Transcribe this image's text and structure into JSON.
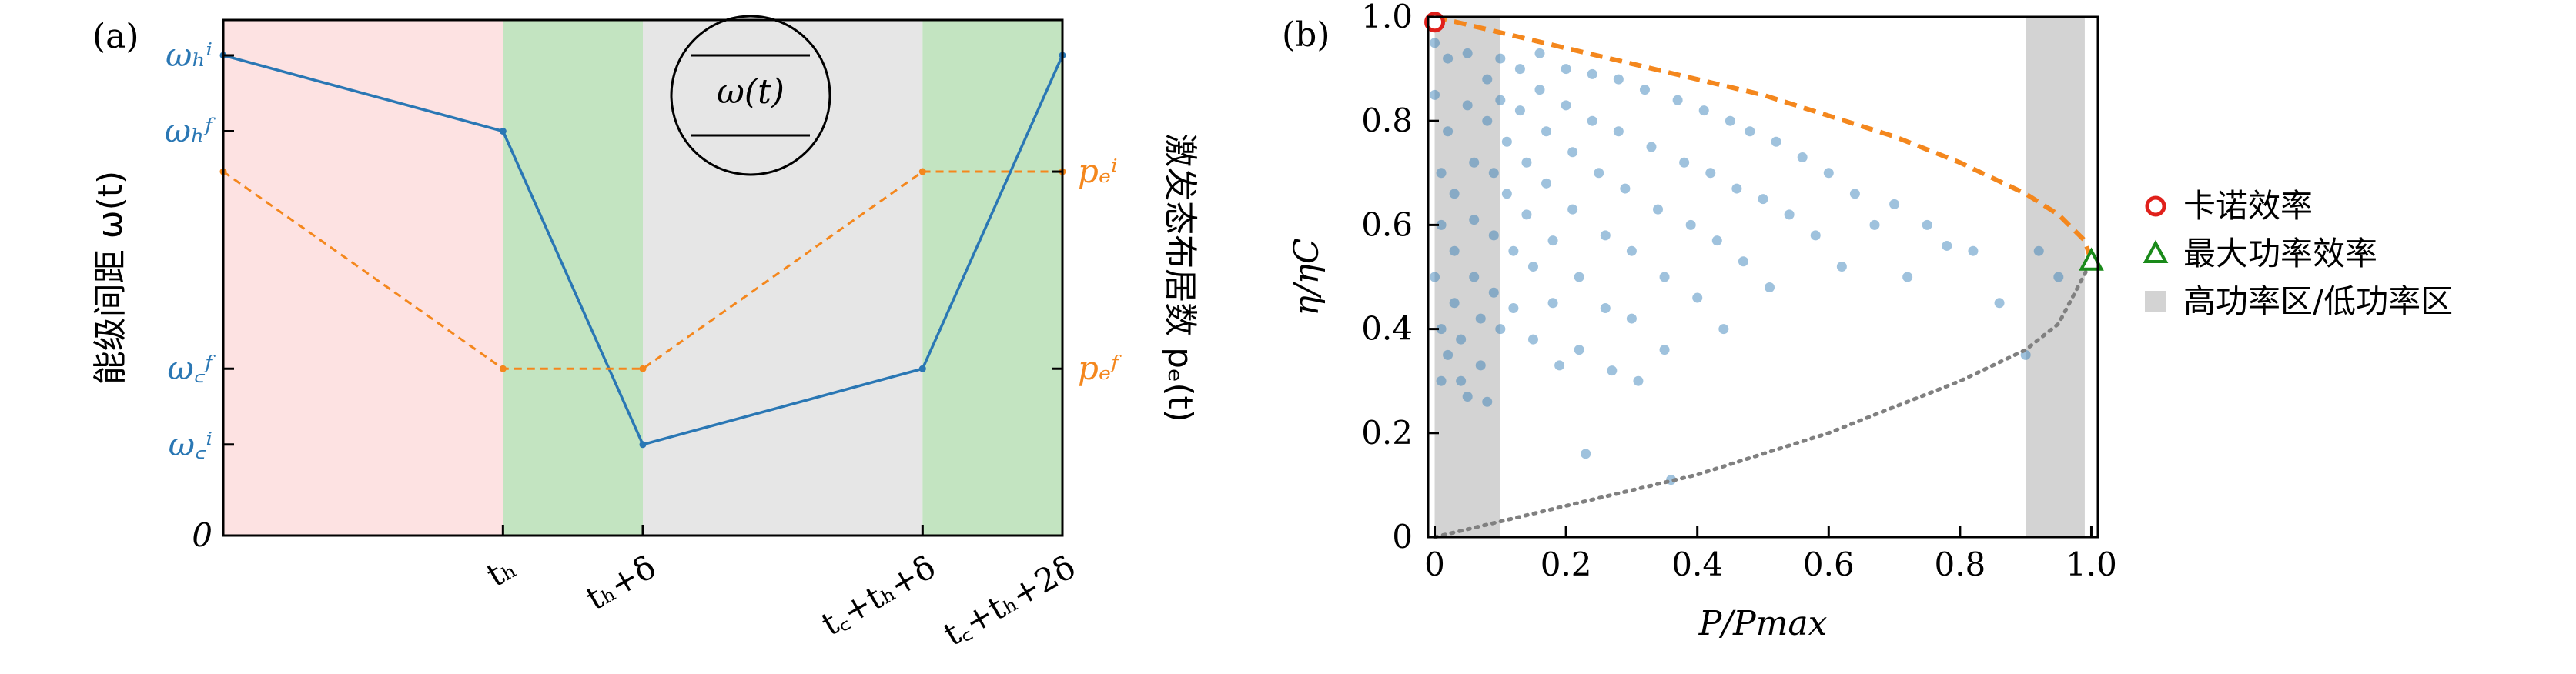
{
  "chart_data": [
    {
      "type": "line",
      "panel_label": "(a)",
      "ylabel_left": "能级间距 ω(t)",
      "ylabel_right": "激发态布居数 pₑ(t)",
      "inset_label": "ω(t)",
      "x_ticks": [
        {
          "label": "tₕ",
          "x": 1
        },
        {
          "label": "tₕ+δ",
          "x": 1.5
        },
        {
          "label": "t꜀+tₕ+δ",
          "x": 2.5
        },
        {
          "label": "t꜀+tₕ+2δ",
          "x": 3
        }
      ],
      "y_left_ticks": [
        {
          "label": "ωₕⁱ",
          "y": 0.95
        },
        {
          "label": "ωₕᶠ",
          "y": 0.8
        },
        {
          "label": "ω꜀ᶠ",
          "y": 0.33
        },
        {
          "label": "ω꜀ⁱ",
          "y": 0.18
        },
        {
          "label": "0",
          "y": 0
        }
      ],
      "y_right_ticks": [
        {
          "label": "pₑⁱ",
          "y": 0.72
        },
        {
          "label": "pₑᶠ",
          "y": 0.33
        }
      ],
      "xlim": [
        0,
        3
      ],
      "ylim": [
        0,
        1.02
      ],
      "regions": [
        {
          "from": 0,
          "to": 1,
          "color": "#fde2e2"
        },
        {
          "from": 1,
          "to": 1.5,
          "color": "#c3e4c1"
        },
        {
          "from": 1.5,
          "to": 2.5,
          "color": "#e6e6e6"
        },
        {
          "from": 2.5,
          "to": 3,
          "color": "#c3e4c1"
        }
      ],
      "series": [
        {
          "color": "#2a77b4",
          "style": "solid",
          "x": [
            0,
            1,
            1.5,
            2.5,
            3
          ],
          "y": [
            0.95,
            0.8,
            0.18,
            0.33,
            0.95
          ]
        },
        {
          "color": "#f4871d",
          "style": "dashed",
          "x": [
            0,
            1,
            1.5,
            2.5,
            3
          ],
          "y": [
            0.72,
            0.33,
            0.33,
            0.72,
            0.72
          ]
        }
      ]
    },
    {
      "type": "scatter",
      "panel_label": "(b)",
      "xlabel": "P/Pmax",
      "ylabel": "η/ηC",
      "xlim": [
        -0.01,
        1.01
      ],
      "ylim": [
        0,
        1.0
      ],
      "x_ticks": [
        "0",
        "0.2",
        "0.4",
        "0.6",
        "0.8",
        "1.0"
      ],
      "y_ticks": [
        "0",
        "0.2",
        "0.4",
        "0.6",
        "0.8",
        "1.0"
      ],
      "shaded_regions": [
        [
          0,
          0.1
        ],
        [
          0.9,
          0.99
        ]
      ],
      "point_color": "#2a77b4",
      "upper_bound_color": "#f4871d",
      "lower_bound_color": "#808080",
      "upper_bound": {
        "x": [
          0,
          0.1,
          0.2,
          0.3,
          0.4,
          0.5,
          0.6,
          0.7,
          0.8,
          0.9,
          0.95,
          0.99,
          1.0
        ],
        "y": [
          1.0,
          0.97,
          0.94,
          0.91,
          0.88,
          0.85,
          0.81,
          0.77,
          0.72,
          0.66,
          0.62,
          0.57,
          0.53
        ]
      },
      "lower_bound": {
        "x": [
          0,
          0.1,
          0.2,
          0.3,
          0.4,
          0.5,
          0.6,
          0.7,
          0.8,
          0.9,
          0.95,
          1.0
        ],
        "y": [
          0.0,
          0.03,
          0.06,
          0.09,
          0.12,
          0.16,
          0.2,
          0.25,
          0.3,
          0.36,
          0.41,
          0.53
        ]
      },
      "markers": [
        {
          "name": "卡诺效率",
          "x": 0,
          "y": 0.99,
          "shape": "circle",
          "color": "#e0201b"
        },
        {
          "name": "最大功率效率",
          "x": 1.0,
          "y": 0.53,
          "shape": "triangle",
          "color": "#1a8a1a"
        }
      ],
      "scatter_points": [
        [
          0.0,
          0.95
        ],
        [
          0.0,
          0.85
        ],
        [
          0.01,
          0.7
        ],
        [
          0.01,
          0.6
        ],
        [
          0.0,
          0.5
        ],
        [
          0.01,
          0.4
        ],
        [
          0.02,
          0.35
        ],
        [
          0.01,
          0.3
        ],
        [
          0.02,
          0.92
        ],
        [
          0.02,
          0.78
        ],
        [
          0.03,
          0.66
        ],
        [
          0.03,
          0.55
        ],
        [
          0.03,
          0.45
        ],
        [
          0.04,
          0.38
        ],
        [
          0.04,
          0.3
        ],
        [
          0.05,
          0.27
        ],
        [
          0.05,
          0.93
        ],
        [
          0.05,
          0.83
        ],
        [
          0.06,
          0.72
        ],
        [
          0.06,
          0.61
        ],
        [
          0.06,
          0.5
        ],
        [
          0.07,
          0.42
        ],
        [
          0.07,
          0.33
        ],
        [
          0.08,
          0.26
        ],
        [
          0.08,
          0.88
        ],
        [
          0.08,
          0.8
        ],
        [
          0.09,
          0.7
        ],
        [
          0.09,
          0.58
        ],
        [
          0.09,
          0.47
        ],
        [
          0.1,
          0.4
        ],
        [
          0.1,
          0.92
        ],
        [
          0.1,
          0.84
        ],
        [
          0.11,
          0.76
        ],
        [
          0.11,
          0.66
        ],
        [
          0.12,
          0.55
        ],
        [
          0.12,
          0.44
        ],
        [
          0.13,
          0.9
        ],
        [
          0.13,
          0.82
        ],
        [
          0.14,
          0.72
        ],
        [
          0.14,
          0.62
        ],
        [
          0.15,
          0.52
        ],
        [
          0.15,
          0.38
        ],
        [
          0.16,
          0.93
        ],
        [
          0.16,
          0.86
        ],
        [
          0.17,
          0.78
        ],
        [
          0.17,
          0.68
        ],
        [
          0.18,
          0.57
        ],
        [
          0.18,
          0.45
        ],
        [
          0.19,
          0.33
        ],
        [
          0.2,
          0.9
        ],
        [
          0.2,
          0.83
        ],
        [
          0.21,
          0.74
        ],
        [
          0.21,
          0.63
        ],
        [
          0.22,
          0.5
        ],
        [
          0.22,
          0.36
        ],
        [
          0.23,
          0.16
        ],
        [
          0.24,
          0.89
        ],
        [
          0.24,
          0.8
        ],
        [
          0.25,
          0.7
        ],
        [
          0.26,
          0.58
        ],
        [
          0.26,
          0.44
        ],
        [
          0.27,
          0.32
        ],
        [
          0.28,
          0.88
        ],
        [
          0.28,
          0.78
        ],
        [
          0.29,
          0.67
        ],
        [
          0.3,
          0.55
        ],
        [
          0.3,
          0.42
        ],
        [
          0.31,
          0.3
        ],
        [
          0.32,
          0.86
        ],
        [
          0.33,
          0.75
        ],
        [
          0.34,
          0.63
        ],
        [
          0.35,
          0.5
        ],
        [
          0.35,
          0.36
        ],
        [
          0.36,
          0.11
        ],
        [
          0.37,
          0.84
        ],
        [
          0.38,
          0.72
        ],
        [
          0.39,
          0.6
        ],
        [
          0.4,
          0.46
        ],
        [
          0.41,
          0.82
        ],
        [
          0.42,
          0.7
        ],
        [
          0.43,
          0.57
        ],
        [
          0.44,
          0.4
        ],
        [
          0.45,
          0.8
        ],
        [
          0.46,
          0.67
        ],
        [
          0.47,
          0.53
        ],
        [
          0.48,
          0.78
        ],
        [
          0.5,
          0.65
        ],
        [
          0.51,
          0.48
        ],
        [
          0.52,
          0.76
        ],
        [
          0.54,
          0.62
        ],
        [
          0.56,
          0.73
        ],
        [
          0.58,
          0.58
        ],
        [
          0.6,
          0.7
        ],
        [
          0.62,
          0.52
        ],
        [
          0.64,
          0.66
        ],
        [
          0.67,
          0.6
        ],
        [
          0.7,
          0.64
        ],
        [
          0.72,
          0.5
        ],
        [
          0.75,
          0.6
        ],
        [
          0.78,
          0.56
        ],
        [
          0.82,
          0.55
        ],
        [
          0.86,
          0.45
        ],
        [
          0.9,
          0.35
        ],
        [
          0.92,
          0.55
        ],
        [
          0.95,
          0.5
        ]
      ]
    }
  ],
  "legend": [
    {
      "label": "卡诺效率",
      "symbol": "circle",
      "color": "#e0201b"
    },
    {
      "label": "最大功率效率",
      "symbol": "triangle",
      "color": "#1a8a1a"
    },
    {
      "label": "高功率区/低功率区",
      "symbol": "square",
      "color": "#d3d3d3"
    }
  ]
}
